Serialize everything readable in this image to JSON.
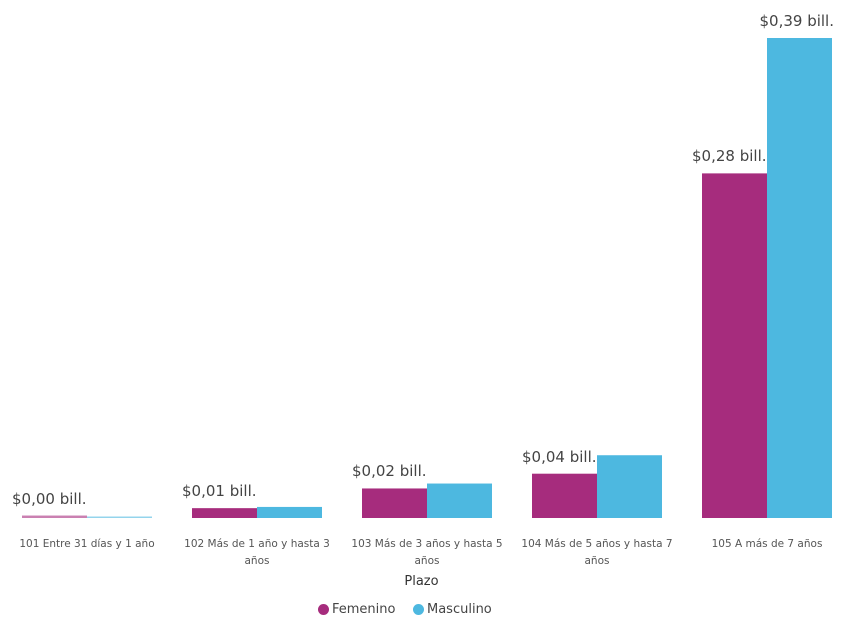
{
  "chart_data": {
    "type": "bar",
    "categories": [
      "101 Entre 31 días y 1 año",
      "102 Más de 1 año y hasta 3 años",
      "103 Más de 3 años y hasta 5 años",
      "104 Más de 5 años y hasta 7 años",
      "105 A más de 7 años"
    ],
    "series": [
      {
        "name": "Femenino",
        "color": "#a62c7d",
        "values": [
          0.002,
          0.008,
          0.024,
          0.036,
          0.28
        ],
        "value_labels": [
          "$0,00 bill.",
          "$0,01 bill.",
          "$0,02 bill.",
          "$0,04 bill.",
          "$0,28 bill."
        ]
      },
      {
        "name": "Masculino",
        "color": "#4db8e0",
        "values": [
          0.001,
          0.009,
          0.028,
          0.051,
          0.39
        ],
        "value_labels": [
          null,
          null,
          null,
          null,
          "$0,39 bill."
        ]
      }
    ],
    "xlabel": "Plazo"
  }
}
